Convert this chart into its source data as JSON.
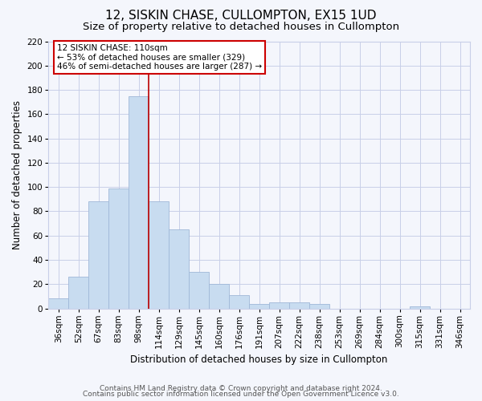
{
  "title": "12, SISKIN CHASE, CULLOMPTON, EX15 1UD",
  "subtitle": "Size of property relative to detached houses in Cullompton",
  "xlabel": "Distribution of detached houses by size in Cullompton",
  "ylabel": "Number of detached properties",
  "footnote1": "Contains HM Land Registry data © Crown copyright and database right 2024.",
  "footnote2": "Contains public sector information licensed under the Open Government Licence v3.0.",
  "bar_labels": [
    "36sqm",
    "52sqm",
    "67sqm",
    "83sqm",
    "98sqm",
    "114sqm",
    "129sqm",
    "145sqm",
    "160sqm",
    "176sqm",
    "191sqm",
    "207sqm",
    "222sqm",
    "238sqm",
    "253sqm",
    "269sqm",
    "284sqm",
    "300sqm",
    "315sqm",
    "331sqm",
    "346sqm"
  ],
  "bar_heights": [
    8,
    26,
    88,
    99,
    175,
    88,
    65,
    30,
    20,
    11,
    4,
    5,
    5,
    4,
    0,
    0,
    0,
    0,
    2,
    0,
    0
  ],
  "bar_color": "#c8dcf0",
  "bar_edge_color": "#a0b8d8",
  "ylim": [
    0,
    220
  ],
  "yticks": [
    0,
    20,
    40,
    60,
    80,
    100,
    120,
    140,
    160,
    180,
    200,
    220
  ],
  "vline_x_index": 4.5,
  "vline_color": "#bb0000",
  "annotation_title": "12 SISKIN CHASE: 110sqm",
  "annotation_line1": "← 53% of detached houses are smaller (329)",
  "annotation_line2": "46% of semi-detached houses are larger (287) →",
  "annotation_box_color": "#ffffff",
  "annotation_box_edge": "#cc0000",
  "bg_color": "#f4f6fc",
  "plot_bg_color": "#f4f6fc",
  "grid_color": "#c8cfe8",
  "title_fontsize": 11,
  "subtitle_fontsize": 9.5,
  "axis_label_fontsize": 8.5,
  "tick_fontsize": 7.5,
  "footnote_fontsize": 6.5,
  "annotation_fontsize": 7.5
}
